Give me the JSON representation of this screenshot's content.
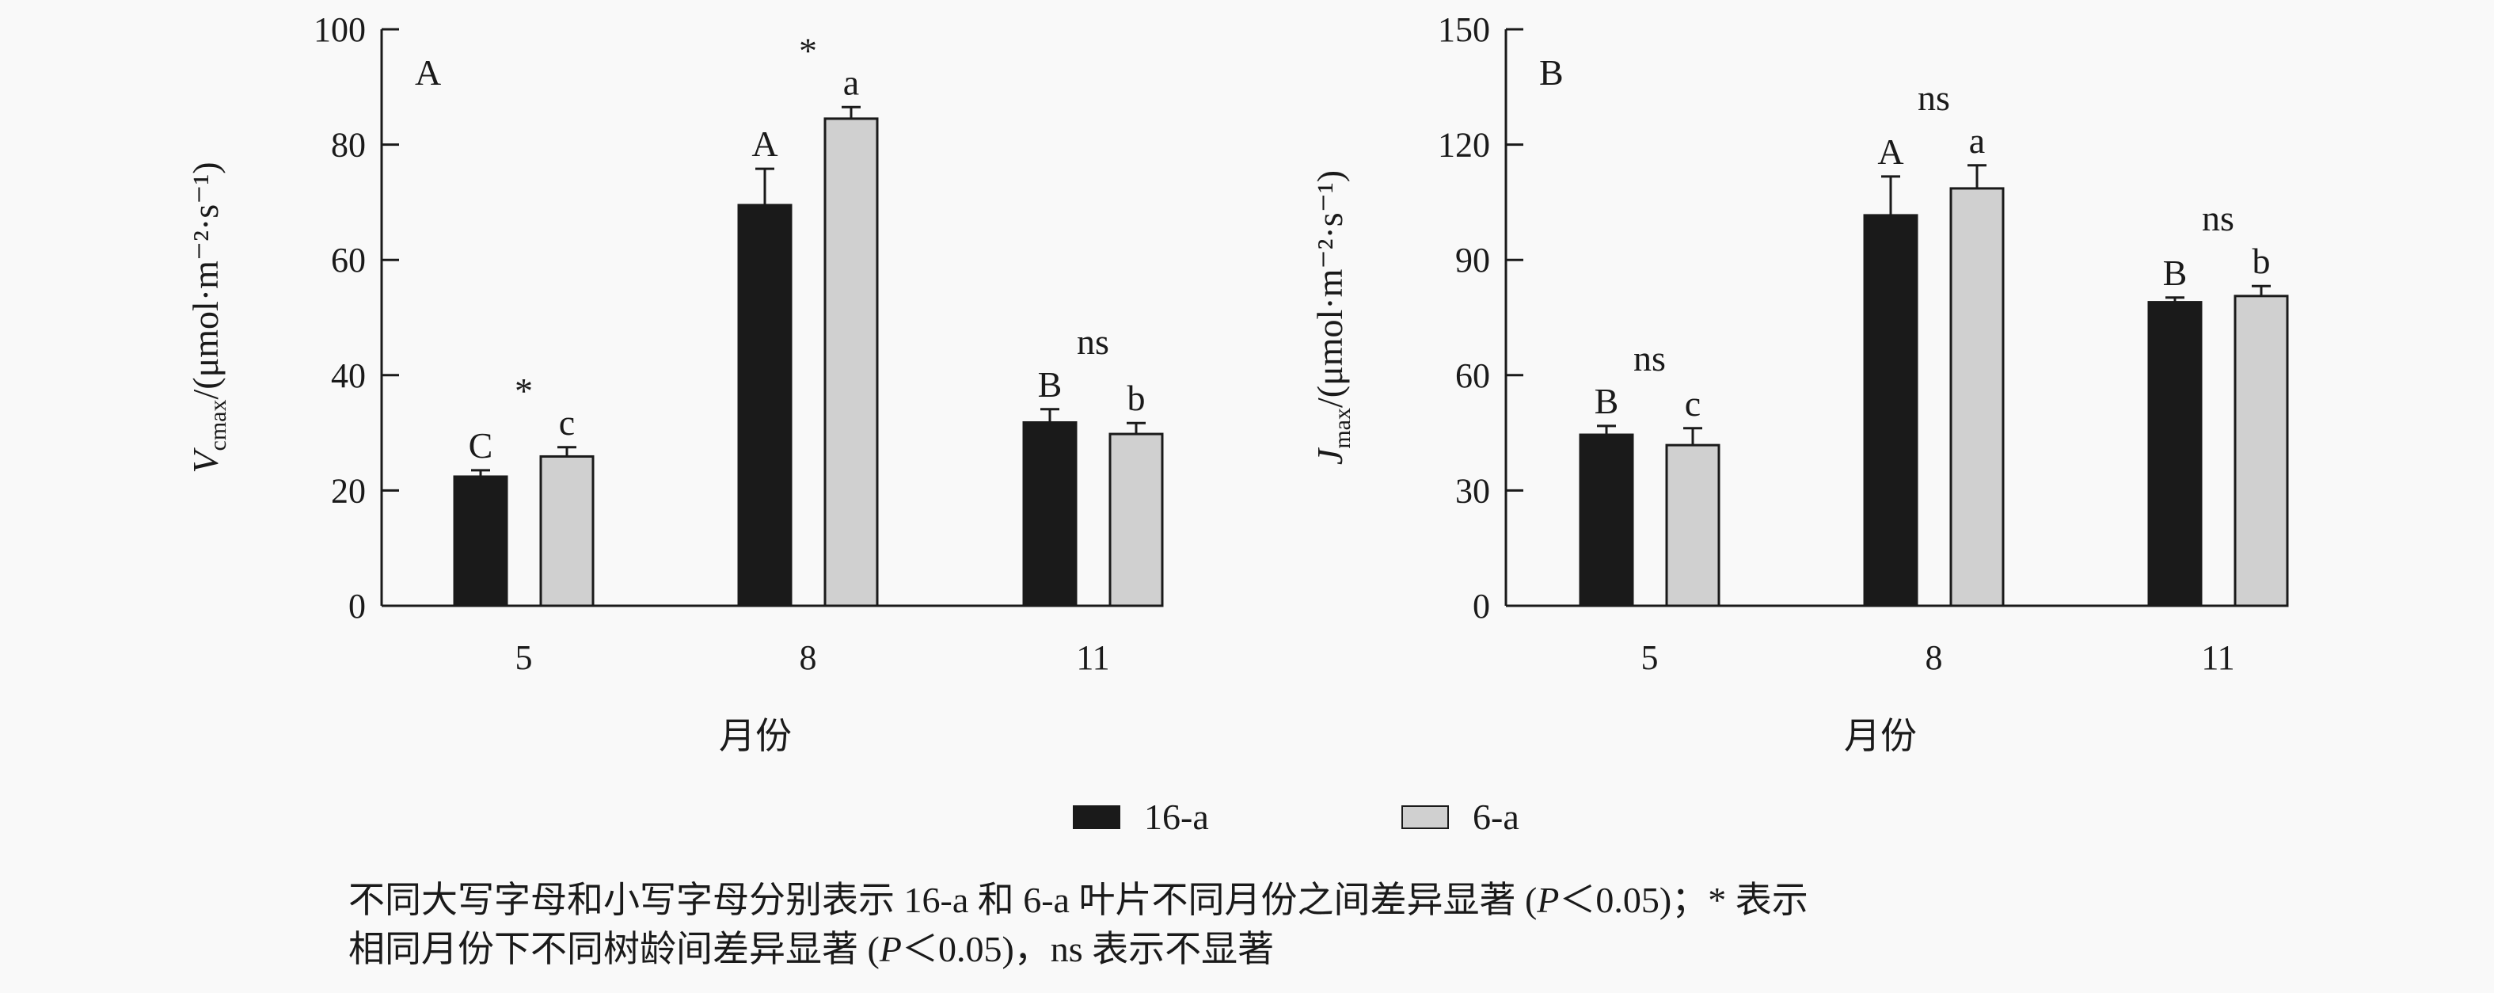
{
  "colors": {
    "series_16a": "#1a1a1a",
    "series_6a": "#d0d0d0",
    "axis": "#1a1a1a"
  },
  "chart_data": [
    {
      "type": "bar",
      "panel_label": "A",
      "categories": [
        "5",
        "8",
        "11"
      ],
      "xlabel": "月份",
      "ylabel_symbol": "V",
      "ylabel_sub": "cmax",
      "ylabel_unit": "/(μmol·m⁻²·s⁻¹)",
      "ylim": [
        0,
        100
      ],
      "yticks": [
        0,
        20,
        40,
        60,
        80,
        100
      ],
      "series": [
        {
          "name": "16-a",
          "values": [
            22.4,
            69.5,
            31.8
          ],
          "errors": [
            1.1,
            6.3,
            2.3
          ],
          "letters": [
            "C",
            "A",
            "B"
          ]
        },
        {
          "name": "6-a",
          "values": [
            25.9,
            84.5,
            29.8
          ],
          "errors": [
            1.6,
            2.0,
            1.9
          ],
          "letters": [
            "c",
            "a",
            "b"
          ]
        }
      ],
      "group_annotations": [
        "*",
        "*",
        "ns"
      ]
    },
    {
      "type": "bar",
      "panel_label": "B",
      "categories": [
        "5",
        "8",
        "11"
      ],
      "xlabel": "月份",
      "ylabel_symbol": "J",
      "ylabel_sub": "max",
      "ylabel_unit": "/(μmol·m⁻²·s⁻¹)",
      "ylim": [
        0,
        150
      ],
      "yticks": [
        0,
        30,
        60,
        90,
        120,
        150
      ],
      "series": [
        {
          "name": "16-a",
          "values": [
            44.5,
            101.6,
            79.0
          ],
          "errors": [
            2.3,
            10.1,
            1.2
          ],
          "letters": [
            "B",
            "A",
            "B"
          ]
        },
        {
          "name": "6-a",
          "values": [
            41.8,
            108.6,
            80.6
          ],
          "errors": [
            4.4,
            6.0,
            2.6
          ],
          "letters": [
            "c",
            "a",
            "b"
          ]
        }
      ],
      "group_annotations": [
        "ns",
        "ns",
        "ns"
      ]
    }
  ],
  "legend": [
    {
      "label": "16-a"
    },
    {
      "label": "6-a"
    }
  ],
  "footnote": {
    "line1_a": "不同大写字母和小写字母分别表示 16-a 和 6-a 叶片不同月份之间差异显著 (",
    "p": "P",
    "line1_b": "＜0.05)；* 表示",
    "line2_a": "相同月份下不同树龄间差异显著 (",
    "line2_b": "＜0.05)，ns 表示不显著"
  }
}
